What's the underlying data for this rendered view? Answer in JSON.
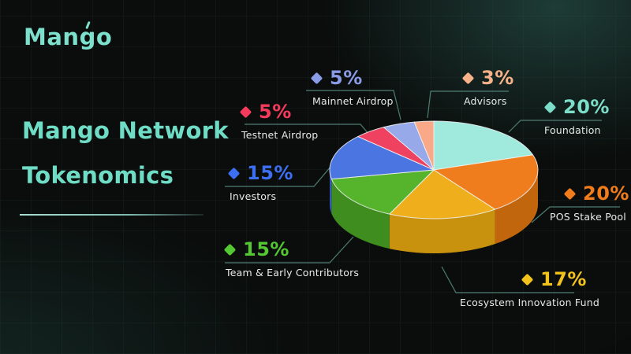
{
  "logo": {
    "text": "Mango"
  },
  "header": {
    "title_line1": "Mango Network",
    "title_line2": "Tokenomics",
    "accent_color": "#6fdcc6"
  },
  "chart_data": {
    "type": "pie",
    "style": "3d-pie",
    "title": "Mango Network Tokenomics",
    "unit": "%",
    "order": "clockwise-from-top",
    "connector_color": "#4f7d72",
    "slices": [
      {
        "id": "foundation",
        "label": "Foundation",
        "value": 20,
        "pct": "20%",
        "color": "#9feadc",
        "wall": "#5fb9a8",
        "text": "#7cdec8"
      },
      {
        "id": "pos",
        "label": "POS Stake Pool",
        "value": 20,
        "pct": "20%",
        "color": "#ef7d1e",
        "wall": "#c2660e",
        "text": "#f07c1c"
      },
      {
        "id": "ecosystem",
        "label": "Ecosystem Innovation Fund",
        "value": 17,
        "pct": "17%",
        "color": "#efaf1c",
        "wall": "#c8920f",
        "text": "#f2c31d"
      },
      {
        "id": "team",
        "label": "Team & Early Contributors",
        "value": 15,
        "pct": "15%",
        "color": "#55b42c",
        "wall": "#3f8c1f",
        "text": "#54c832"
      },
      {
        "id": "investors",
        "label": "Investors",
        "value": 15,
        "pct": "15%",
        "color": "#4b76e1",
        "wall": "#3558b8",
        "text": "#3d6ff2"
      },
      {
        "id": "testnet",
        "label": "Testnet Airdrop",
        "value": 5,
        "pct": "5%",
        "color": "#ee4260",
        "wall": "#b52e48",
        "text": "#f53b5c"
      },
      {
        "id": "mainnet",
        "label": "Mainnet Airdrop",
        "value": 5,
        "pct": "5%",
        "color": "#98a9e9",
        "wall": "#6f7fc0",
        "text": "#8a9be8"
      },
      {
        "id": "advisors",
        "label": "Advisors",
        "value": 3,
        "pct": "3%",
        "color": "#f9a987",
        "wall": "#c97f5e",
        "text": "#f8b289"
      }
    ]
  }
}
